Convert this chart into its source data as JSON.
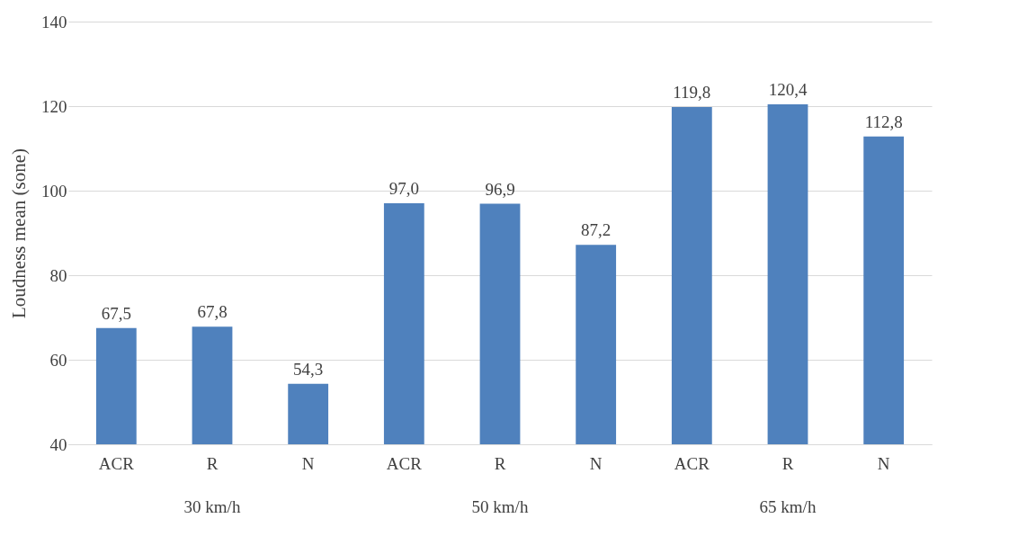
{
  "chart_data": {
    "type": "bar",
    "ylabel": "Loudness mean (sone)",
    "categories": [
      "ACR",
      "R",
      "N",
      "ACR",
      "R",
      "N",
      "ACR",
      "R",
      "N"
    ],
    "values": [
      67.5,
      67.8,
      54.3,
      97.0,
      96.9,
      87.2,
      119.8,
      120.4,
      112.8
    ],
    "value_labels": [
      "67,5",
      "67,8",
      "54,3",
      "97,0",
      "96,9",
      "87,2",
      "119,8",
      "120,4",
      "112,8"
    ],
    "color": "#4f81bd",
    "annotations": [
      "30 km/h",
      "50 km/h",
      "65 km/h"
    ],
    "ylim": [
      40,
      140
    ],
    "yticks": [
      40,
      60,
      80,
      100,
      120,
      140
    ],
    "grid": "y"
  }
}
